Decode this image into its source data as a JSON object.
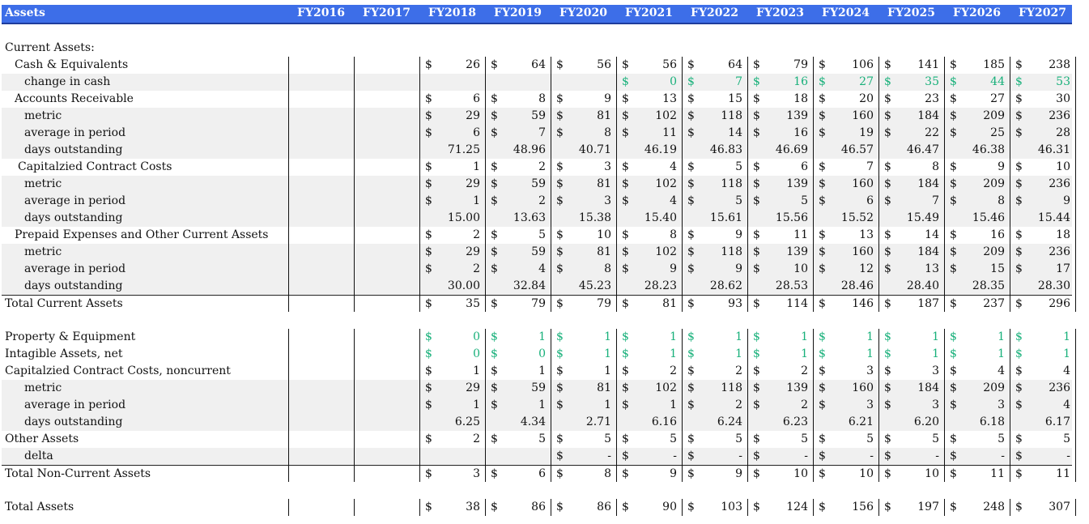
{
  "header": {
    "label": "Assets",
    "years": [
      "FY2016",
      "FY2017",
      "FY2018",
      "FY2019",
      "FY2020",
      "FY2021",
      "FY2022",
      "FY2023",
      "FY2024",
      "FY2025",
      "FY2026",
      "FY2027"
    ]
  },
  "colors": {
    "header_bg": "#3d6ee8",
    "accent_green": "#18b07a",
    "row_shade": "#f0f0f0"
  },
  "rows": [
    {
      "label": "Current Assets:",
      "indent": 0,
      "r": 1,
      "shaded": false,
      "cells": []
    },
    {
      "label": "Cash & Equivalents",
      "indent": 1,
      "r": 2,
      "shaded": false,
      "cells": [
        [
          "",
          ""
        ],
        [
          "",
          ""
        ],
        [
          "$",
          "26"
        ],
        [
          "$",
          "64"
        ],
        [
          "$",
          "56"
        ],
        [
          "$",
          "56"
        ],
        [
          "$",
          "64"
        ],
        [
          "$",
          "79"
        ],
        [
          "$",
          "106"
        ],
        [
          "$",
          "141"
        ],
        [
          "$",
          "185"
        ],
        [
          "$",
          "238"
        ]
      ]
    },
    {
      "label": "change in cash",
      "indent": 2,
      "r": 3,
      "shaded": true,
      "green_from": 5,
      "cells": [
        [
          "",
          ""
        ],
        [
          "",
          ""
        ],
        [
          "",
          ""
        ],
        [
          "",
          ""
        ],
        [
          "",
          ""
        ],
        [
          "$",
          "0"
        ],
        [
          "$",
          "7"
        ],
        [
          "$",
          "16"
        ],
        [
          "$",
          "27"
        ],
        [
          "$",
          "35"
        ],
        [
          "$",
          "44"
        ],
        [
          "$",
          "53"
        ]
      ]
    },
    {
      "label": "Accounts Receivable",
      "indent": 1,
      "r": 4,
      "shaded": false,
      "cells": [
        [
          "",
          ""
        ],
        [
          "",
          ""
        ],
        [
          "$",
          "6"
        ],
        [
          "$",
          "8"
        ],
        [
          "$",
          "9"
        ],
        [
          "$",
          "13"
        ],
        [
          "$",
          "15"
        ],
        [
          "$",
          "18"
        ],
        [
          "$",
          "20"
        ],
        [
          "$",
          "23"
        ],
        [
          "$",
          "27"
        ],
        [
          "$",
          "30"
        ]
      ]
    },
    {
      "label": "metric",
      "indent": 2,
      "r": 5,
      "shaded": true,
      "cells": [
        [
          "",
          ""
        ],
        [
          "",
          ""
        ],
        [
          "$",
          "29"
        ],
        [
          "$",
          "59"
        ],
        [
          "$",
          "81"
        ],
        [
          "$",
          "102"
        ],
        [
          "$",
          "118"
        ],
        [
          "$",
          "139"
        ],
        [
          "$",
          "160"
        ],
        [
          "$",
          "184"
        ],
        [
          "$",
          "209"
        ],
        [
          "$",
          "236"
        ]
      ]
    },
    {
      "label": "average in period",
      "indent": 2,
      "r": 6,
      "shaded": true,
      "cells": [
        [
          "",
          ""
        ],
        [
          "",
          ""
        ],
        [
          "$",
          "6"
        ],
        [
          "$",
          "7"
        ],
        [
          "$",
          "8"
        ],
        [
          "$",
          "11"
        ],
        [
          "$",
          "14"
        ],
        [
          "$",
          "16"
        ],
        [
          "$",
          "19"
        ],
        [
          "$",
          "22"
        ],
        [
          "$",
          "25"
        ],
        [
          "$",
          "28"
        ]
      ]
    },
    {
      "label": "days outstanding",
      "indent": 2,
      "r": 7,
      "shaded": true,
      "cells": [
        [
          "",
          ""
        ],
        [
          "",
          ""
        ],
        [
          "",
          "71.25"
        ],
        [
          "",
          "48.96"
        ],
        [
          "",
          "40.71"
        ],
        [
          "",
          "46.19"
        ],
        [
          "",
          "46.83"
        ],
        [
          "",
          "46.69"
        ],
        [
          "",
          "46.57"
        ],
        [
          "",
          "46.47"
        ],
        [
          "",
          "46.38"
        ],
        [
          "",
          "46.31"
        ]
      ]
    },
    {
      "label": "Capitalzied Contract Costs",
      "indent": 3,
      "r": 8,
      "shaded": false,
      "cells": [
        [
          "",
          ""
        ],
        [
          "",
          ""
        ],
        [
          "$",
          "1"
        ],
        [
          "$",
          "2"
        ],
        [
          "$",
          "3"
        ],
        [
          "$",
          "4"
        ],
        [
          "$",
          "5"
        ],
        [
          "$",
          "6"
        ],
        [
          "$",
          "7"
        ],
        [
          "$",
          "8"
        ],
        [
          "$",
          "9"
        ],
        [
          "$",
          "10"
        ]
      ]
    },
    {
      "label": "metric",
      "indent": 2,
      "r": 9,
      "shaded": true,
      "cells": [
        [
          "",
          ""
        ],
        [
          "",
          ""
        ],
        [
          "$",
          "29"
        ],
        [
          "$",
          "59"
        ],
        [
          "$",
          "81"
        ],
        [
          "$",
          "102"
        ],
        [
          "$",
          "118"
        ],
        [
          "$",
          "139"
        ],
        [
          "$",
          "160"
        ],
        [
          "$",
          "184"
        ],
        [
          "$",
          "209"
        ],
        [
          "$",
          "236"
        ]
      ]
    },
    {
      "label": "average in period",
      "indent": 2,
      "r": 10,
      "shaded": true,
      "cells": [
        [
          "",
          ""
        ],
        [
          "",
          ""
        ],
        [
          "$",
          "1"
        ],
        [
          "$",
          "2"
        ],
        [
          "$",
          "3"
        ],
        [
          "$",
          "4"
        ],
        [
          "$",
          "5"
        ],
        [
          "$",
          "5"
        ],
        [
          "$",
          "6"
        ],
        [
          "$",
          "7"
        ],
        [
          "$",
          "8"
        ],
        [
          "$",
          "9"
        ]
      ]
    },
    {
      "label": "days outstanding",
      "indent": 2,
      "r": 11,
      "shaded": true,
      "cells": [
        [
          "",
          ""
        ],
        [
          "",
          ""
        ],
        [
          "",
          "15.00"
        ],
        [
          "",
          "13.63"
        ],
        [
          "",
          "15.38"
        ],
        [
          "",
          "15.40"
        ],
        [
          "",
          "15.61"
        ],
        [
          "",
          "15.56"
        ],
        [
          "",
          "15.52"
        ],
        [
          "",
          "15.49"
        ],
        [
          "",
          "15.46"
        ],
        [
          "",
          "15.44"
        ]
      ]
    },
    {
      "label": "Prepaid Expenses and Other Current Assets",
      "indent": 1,
      "r": 12,
      "shaded": false,
      "cells": [
        [
          "",
          ""
        ],
        [
          "",
          ""
        ],
        [
          "$",
          "2"
        ],
        [
          "$",
          "5"
        ],
        [
          "$",
          "10"
        ],
        [
          "$",
          "8"
        ],
        [
          "$",
          "9"
        ],
        [
          "$",
          "11"
        ],
        [
          "$",
          "13"
        ],
        [
          "$",
          "14"
        ],
        [
          "$",
          "16"
        ],
        [
          "$",
          "18"
        ]
      ]
    },
    {
      "label": "metric",
      "indent": 2,
      "r": 13,
      "shaded": true,
      "cells": [
        [
          "",
          ""
        ],
        [
          "",
          ""
        ],
        [
          "$",
          "29"
        ],
        [
          "$",
          "59"
        ],
        [
          "$",
          "81"
        ],
        [
          "$",
          "102"
        ],
        [
          "$",
          "118"
        ],
        [
          "$",
          "139"
        ],
        [
          "$",
          "160"
        ],
        [
          "$",
          "184"
        ],
        [
          "$",
          "209"
        ],
        [
          "$",
          "236"
        ]
      ]
    },
    {
      "label": "average in period",
      "indent": 2,
      "r": 14,
      "shaded": true,
      "cells": [
        [
          "",
          ""
        ],
        [
          "",
          ""
        ],
        [
          "$",
          "2"
        ],
        [
          "$",
          "4"
        ],
        [
          "$",
          "8"
        ],
        [
          "$",
          "9"
        ],
        [
          "$",
          "9"
        ],
        [
          "$",
          "10"
        ],
        [
          "$",
          "12"
        ],
        [
          "$",
          "13"
        ],
        [
          "$",
          "15"
        ],
        [
          "$",
          "17"
        ]
      ]
    },
    {
      "label": "days outstanding",
      "indent": 2,
      "r": 15,
      "shaded": true,
      "cells": [
        [
          "",
          ""
        ],
        [
          "",
          ""
        ],
        [
          "",
          "30.00"
        ],
        [
          "",
          "32.84"
        ],
        [
          "",
          "45.23"
        ],
        [
          "",
          "28.23"
        ],
        [
          "",
          "28.62"
        ],
        [
          "",
          "28.53"
        ],
        [
          "",
          "28.46"
        ],
        [
          "",
          "28.40"
        ],
        [
          "",
          "28.35"
        ],
        [
          "",
          "28.30"
        ]
      ]
    },
    {
      "label": "Total Current Assets",
      "indent": 0,
      "r": 16,
      "shaded": false,
      "topline": true,
      "cells": [
        [
          "",
          ""
        ],
        [
          "",
          ""
        ],
        [
          "$",
          "35"
        ],
        [
          "$",
          "79"
        ],
        [
          "$",
          "79"
        ],
        [
          "$",
          "81"
        ],
        [
          "$",
          "93"
        ],
        [
          "$",
          "114"
        ],
        [
          "$",
          "146"
        ],
        [
          "$",
          "187"
        ],
        [
          "$",
          "237"
        ],
        [
          "$",
          "296"
        ]
      ]
    },
    {
      "label": "Property & Equipment",
      "indent": 0,
      "r": 18,
      "shaded": false,
      "green_from": 2,
      "cells": [
        [
          "",
          ""
        ],
        [
          "",
          ""
        ],
        [
          "$",
          "0"
        ],
        [
          "$",
          "1"
        ],
        [
          "$",
          "1"
        ],
        [
          "$",
          "1"
        ],
        [
          "$",
          "1"
        ],
        [
          "$",
          "1"
        ],
        [
          "$",
          "1"
        ],
        [
          "$",
          "1"
        ],
        [
          "$",
          "1"
        ],
        [
          "$",
          "1"
        ]
      ]
    },
    {
      "label": "Intagible Assets, net",
      "indent": 0,
      "r": 19,
      "shaded": false,
      "green_from": 2,
      "cells": [
        [
          "",
          ""
        ],
        [
          "",
          ""
        ],
        [
          "$",
          "0"
        ],
        [
          "$",
          "0"
        ],
        [
          "$",
          "1"
        ],
        [
          "$",
          "1"
        ],
        [
          "$",
          "1"
        ],
        [
          "$",
          "1"
        ],
        [
          "$",
          "1"
        ],
        [
          "$",
          "1"
        ],
        [
          "$",
          "1"
        ],
        [
          "$",
          "1"
        ]
      ]
    },
    {
      "label": "Capitalzied Contract Costs, noncurrent",
      "indent": 0,
      "r": 20,
      "shaded": false,
      "cells": [
        [
          "",
          ""
        ],
        [
          "",
          ""
        ],
        [
          "$",
          "1"
        ],
        [
          "$",
          "1"
        ],
        [
          "$",
          "1"
        ],
        [
          "$",
          "2"
        ],
        [
          "$",
          "2"
        ],
        [
          "$",
          "2"
        ],
        [
          "$",
          "3"
        ],
        [
          "$",
          "3"
        ],
        [
          "$",
          "4"
        ],
        [
          "$",
          "4"
        ]
      ]
    },
    {
      "label": "metric",
      "indent": 2,
      "r": 21,
      "shaded": true,
      "cells": [
        [
          "",
          ""
        ],
        [
          "",
          ""
        ],
        [
          "$",
          "29"
        ],
        [
          "$",
          "59"
        ],
        [
          "$",
          "81"
        ],
        [
          "$",
          "102"
        ],
        [
          "$",
          "118"
        ],
        [
          "$",
          "139"
        ],
        [
          "$",
          "160"
        ],
        [
          "$",
          "184"
        ],
        [
          "$",
          "209"
        ],
        [
          "$",
          "236"
        ]
      ]
    },
    {
      "label": "average in period",
      "indent": 2,
      "r": 22,
      "shaded": true,
      "cells": [
        [
          "",
          ""
        ],
        [
          "",
          ""
        ],
        [
          "$",
          "1"
        ],
        [
          "$",
          "1"
        ],
        [
          "$",
          "1"
        ],
        [
          "$",
          "1"
        ],
        [
          "$",
          "2"
        ],
        [
          "$",
          "2"
        ],
        [
          "$",
          "3"
        ],
        [
          "$",
          "3"
        ],
        [
          "$",
          "3"
        ],
        [
          "$",
          "4"
        ]
      ]
    },
    {
      "label": "days outstanding",
      "indent": 2,
      "r": 23,
      "shaded": true,
      "cells": [
        [
          "",
          ""
        ],
        [
          "",
          ""
        ],
        [
          "",
          "6.25"
        ],
        [
          "",
          "4.34"
        ],
        [
          "",
          "2.71"
        ],
        [
          "",
          "6.16"
        ],
        [
          "",
          "6.24"
        ],
        [
          "",
          "6.23"
        ],
        [
          "",
          "6.21"
        ],
        [
          "",
          "6.20"
        ],
        [
          "",
          "6.18"
        ],
        [
          "",
          "6.17"
        ]
      ]
    },
    {
      "label": "Other Assets",
      "indent": 0,
      "r": 24,
      "shaded": false,
      "cells": [
        [
          "",
          ""
        ],
        [
          "",
          ""
        ],
        [
          "$",
          "2"
        ],
        [
          "$",
          "5"
        ],
        [
          "$",
          "5"
        ],
        [
          "$",
          "5"
        ],
        [
          "$",
          "5"
        ],
        [
          "$",
          "5"
        ],
        [
          "$",
          "5"
        ],
        [
          "$",
          "5"
        ],
        [
          "$",
          "5"
        ],
        [
          "$",
          "5"
        ]
      ]
    },
    {
      "label": "delta",
      "indent": 2,
      "r": 25,
      "shaded": true,
      "cells": [
        [
          "",
          ""
        ],
        [
          "",
          ""
        ],
        [
          "",
          ""
        ],
        [
          "",
          ""
        ],
        [
          "$",
          "-"
        ],
        [
          "$",
          "-"
        ],
        [
          "$",
          "-"
        ],
        [
          "$",
          "-"
        ],
        [
          "$",
          "-"
        ],
        [
          "$",
          "-"
        ],
        [
          "$",
          "-"
        ],
        [
          "$",
          "-"
        ]
      ]
    },
    {
      "label": "Total Non-Current Assets",
      "indent": 0,
      "r": 26,
      "shaded": false,
      "topline": true,
      "cells": [
        [
          "",
          ""
        ],
        [
          "",
          ""
        ],
        [
          "$",
          "3"
        ],
        [
          "$",
          "6"
        ],
        [
          "$",
          "8"
        ],
        [
          "$",
          "9"
        ],
        [
          "$",
          "9"
        ],
        [
          "$",
          "10"
        ],
        [
          "$",
          "10"
        ],
        [
          "$",
          "10"
        ],
        [
          "$",
          "11"
        ],
        [
          "$",
          "11"
        ]
      ]
    },
    {
      "label": "Total Assets",
      "indent": 0,
      "r": 28,
      "shaded": false,
      "cells": [
        [
          "",
          ""
        ],
        [
          "",
          ""
        ],
        [
          "$",
          "38"
        ],
        [
          "$",
          "86"
        ],
        [
          "$",
          "86"
        ],
        [
          "$",
          "90"
        ],
        [
          "$",
          "103"
        ],
        [
          "$",
          "124"
        ],
        [
          "$",
          "156"
        ],
        [
          "$",
          "197"
        ],
        [
          "$",
          "248"
        ],
        [
          "$",
          "307"
        ]
      ]
    }
  ]
}
